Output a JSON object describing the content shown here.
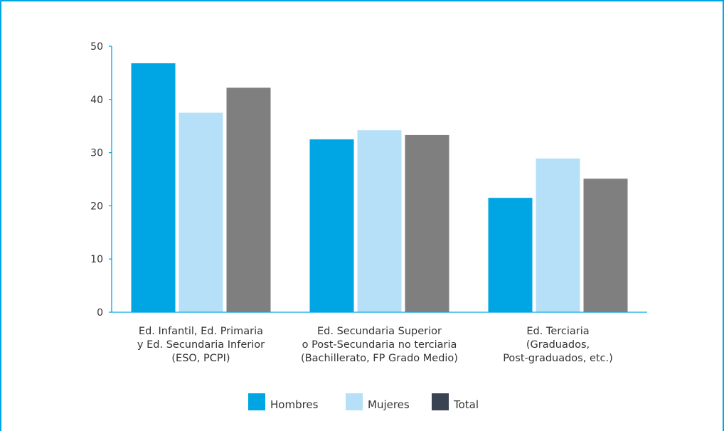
{
  "chart_data": {
    "type": "bar",
    "title": "",
    "xlabel": "",
    "ylabel": "",
    "ylim": [
      0,
      50
    ],
    "yticks": [
      0,
      10,
      20,
      30,
      40,
      50
    ],
    "grid": false,
    "legend_position": "bottom-center",
    "categories": [
      [
        "Ed. Infantil, Ed. Primaria",
        "y Ed. Secundaria Inferior",
        "(ESO, PCPI)"
      ],
      [
        "Ed. Secundaria Superior",
        "o Post-Secundaria no terciaria",
        "(Bachillerato, FP Grado Medio)"
      ],
      [
        "Ed. Terciaria",
        "(Graduados,",
        "Post-graduados, etc.)"
      ]
    ],
    "series": [
      {
        "name": "Hombres",
        "color": "#00a6e3",
        "values": [
          46.8,
          32.5,
          21.5
        ]
      },
      {
        "name": "Mujeres",
        "color": "#b6e0f7",
        "values": [
          37.5,
          34.2,
          28.9
        ]
      },
      {
        "name": "Total",
        "color": "#7f7f7f",
        "values": [
          42.2,
          33.3,
          25.1
        ]
      }
    ],
    "legend_colors": [
      "#00a6e3",
      "#b6e0f7",
      "#3a4352"
    ]
  }
}
